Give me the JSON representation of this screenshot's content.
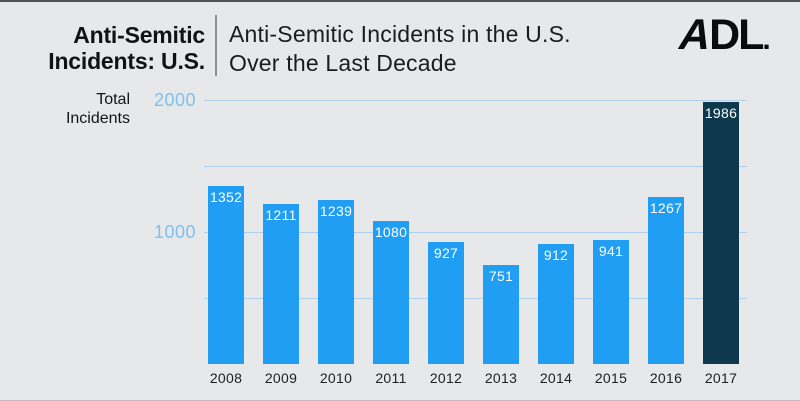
{
  "header": {
    "brand_title_line1": "Anti-Semitic",
    "brand_title_line2": "Incidents: U.S.",
    "chart_title_line1": "Anti-Semitic Incidents in the U.S.",
    "chart_title_line2": "Over the Last Decade",
    "logo": {
      "a": "A",
      "dl": "DL",
      "dot": "."
    }
  },
  "chart_data": {
    "type": "bar",
    "title": "Anti-Semitic Incidents in the U.S. Over the Last Decade",
    "ylabel": "Total Incidents",
    "xlabel": "",
    "categories": [
      "2008",
      "2009",
      "2010",
      "2011",
      "2012",
      "2013",
      "2014",
      "2015",
      "2016",
      "2017"
    ],
    "values": [
      1352,
      1211,
      1239,
      1080,
      927,
      751,
      912,
      941,
      1267,
      1986
    ],
    "ylim": [
      0,
      2000
    ],
    "gridline_values": [
      500,
      1000,
      1500,
      2000
    ],
    "ytick_labels": [
      "1000",
      "2000"
    ],
    "ytick_values": [
      1000,
      2000
    ],
    "grid": true,
    "legend_position": "none",
    "highlight_index": 9
  },
  "colors": {
    "background": "#e6e8ea",
    "bar": "#1f9ef3",
    "highlight_bar": "#0d384e",
    "gridline": "#afcfeb",
    "ytick_text": "#7fc0ef",
    "axis_text": "#1e1e1e",
    "bar_label_text": "#ffffff"
  }
}
